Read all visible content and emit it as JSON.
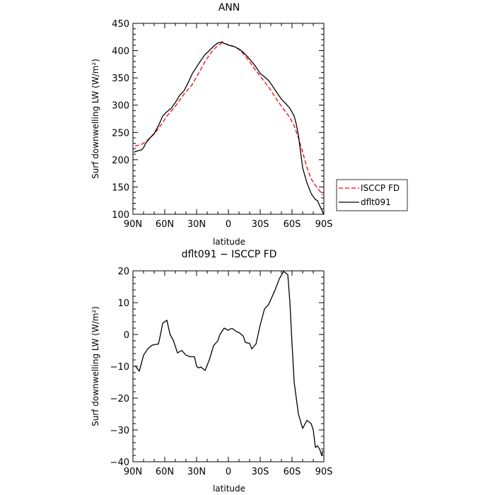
{
  "chart_data": [
    {
      "type": "line",
      "title": "ANN",
      "xlabel": "latitude",
      "ylabel": "Surf downwelling LW (W/m²)",
      "xlim": [
        90,
        -90
      ],
      "ylim": [
        100,
        450
      ],
      "xticks": [
        90,
        60,
        30,
        0,
        -30,
        -60,
        -90
      ],
      "xtick_labels": [
        "90N",
        "60N",
        "30N",
        "0",
        "30S",
        "60S",
        "90S"
      ],
      "yticks": [
        100,
        150,
        200,
        250,
        300,
        350,
        400,
        450
      ],
      "ytick_labels": [
        "100",
        "150",
        "200",
        "250",
        "300",
        "350",
        "400",
        "450"
      ],
      "grid": false,
      "legend_position": "outside-right",
      "series": [
        {
          "name": "ISCCP FD",
          "color": "#ff0000",
          "style": "dashed",
          "x": [
            88,
            82,
            78,
            74,
            70,
            66,
            62,
            58,
            54,
            50,
            46,
            42,
            38,
            34,
            30,
            26,
            22,
            18,
            14,
            10,
            6,
            2,
            -2,
            -6,
            -10,
            -14,
            -18,
            -22,
            -26,
            -30,
            -34,
            -38,
            -42,
            -46,
            -50,
            -54,
            -58,
            -62,
            -66,
            -70,
            -74,
            -78,
            -82,
            -86,
            -89
          ],
          "y": [
            225,
            228,
            233,
            240,
            247,
            257,
            268,
            280,
            289,
            298,
            309,
            320,
            329,
            338,
            352,
            366,
            380,
            392,
            402,
            409,
            414,
            412,
            410,
            407,
            402,
            394,
            385,
            374,
            363,
            353,
            343,
            333,
            321,
            309,
            298,
            288,
            277,
            262,
            240,
            214,
            186,
            165,
            153,
            143,
            135
          ]
        },
        {
          "name": "dflt091",
          "color": "#000000",
          "style": "solid",
          "x": [
            89,
            86,
            82,
            80,
            78,
            74,
            70,
            66,
            62,
            58,
            54,
            50,
            46,
            42,
            38,
            34,
            30,
            26,
            22,
            18,
            14,
            10,
            6,
            4,
            2,
            0,
            -2,
            -6,
            -10,
            -14,
            -18,
            -22,
            -26,
            -30,
            -34,
            -38,
            -42,
            -46,
            -50,
            -54,
            -58,
            -62,
            -64,
            -66,
            -68,
            -70,
            -74,
            -78,
            -82,
            -84,
            -86,
            -88,
            -90
          ],
          "y": [
            214,
            216,
            218,
            222,
            230,
            240,
            248,
            262,
            280,
            288,
            294,
            305,
            318,
            326,
            341,
            358,
            370,
            382,
            393,
            400,
            408,
            414,
            416,
            413,
            412,
            410,
            409,
            407,
            403,
            397,
            389,
            380,
            370,
            358,
            352,
            345,
            334,
            322,
            311,
            303,
            294,
            280,
            265,
            245,
            215,
            185,
            158,
            138,
            127,
            125,
            116,
            108,
            99
          ]
        }
      ]
    },
    {
      "type": "line",
      "title": "dflt091 − ISCCP FD",
      "xlabel": "latitude",
      "ylabel": "Surf downwelling LW (W/m²)",
      "xlim": [
        90,
        -90
      ],
      "ylim": [
        -40,
        20
      ],
      "xticks": [
        90,
        60,
        30,
        0,
        -30,
        -60,
        -90
      ],
      "xtick_labels": [
        "90N",
        "60N",
        "30N",
        "0",
        "30S",
        "60S",
        "90S"
      ],
      "yticks": [
        -40,
        -30,
        -20,
        -10,
        0,
        10,
        20
      ],
      "ytick_labels": [
        "−40",
        "−30",
        "−20",
        "−10",
        "0",
        "10",
        "20"
      ],
      "grid": false,
      "series": [
        {
          "color": "#000000",
          "style": "solid",
          "x": [
            88,
            84,
            80,
            76,
            72,
            70,
            66,
            64,
            62,
            58,
            55,
            52,
            48,
            44,
            40,
            36,
            32,
            30,
            28,
            26,
            22,
            18,
            14,
            10,
            8,
            4,
            0,
            -2,
            -4,
            -8,
            -10,
            -14,
            -16,
            -20,
            -22,
            -26,
            -30,
            -34,
            -38,
            -42,
            -44,
            -48,
            -52,
            -56,
            -58,
            -60,
            -62,
            -64,
            -66,
            -70,
            -74,
            -78,
            -80,
            -82,
            -84,
            -86,
            -88,
            -89
          ],
          "y": [
            -9.8,
            -11.5,
            -6.5,
            -4.5,
            -3.4,
            -3.2,
            -3.0,
            0.0,
            3.5,
            4.5,
            0.0,
            -1.8,
            -5.8,
            -5.0,
            -6.5,
            -7.0,
            -7.0,
            -10.0,
            -10.5,
            -10.2,
            -11.3,
            -8.0,
            -3.5,
            -2.0,
            0.0,
            2.0,
            1.3,
            1.8,
            1.8,
            0.8,
            0.6,
            -0.5,
            -2.5,
            -2.8,
            -4.5,
            -3.0,
            3.0,
            8.0,
            9.5,
            12.5,
            14.0,
            17.5,
            19.8,
            18.8,
            10.0,
            -3.0,
            -15.0,
            -20.0,
            -25.0,
            -29.5,
            -27.0,
            -28.0,
            -30.0,
            -35.5,
            -35.0,
            -36.0,
            -38.0,
            -36.5
          ]
        }
      ]
    }
  ]
}
